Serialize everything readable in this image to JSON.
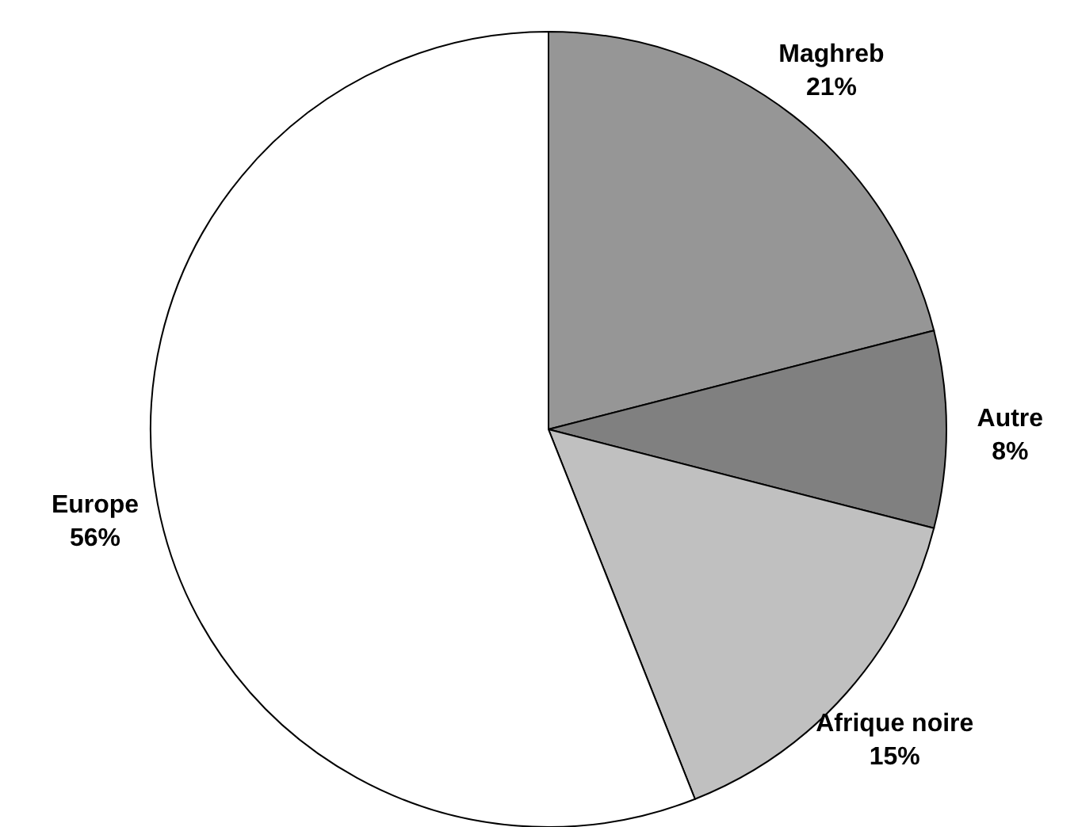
{
  "chart_data": {
    "type": "pie",
    "categories": [
      "Maghreb",
      "Autre",
      "Afrique noire",
      "Europe"
    ],
    "values": [
      21,
      8,
      15,
      56
    ],
    "colors": [
      "#969696",
      "#808080",
      "#c0c0c0",
      "#ffffff"
    ],
    "value_labels": [
      "21%",
      "8%",
      "15%",
      "56%"
    ]
  }
}
